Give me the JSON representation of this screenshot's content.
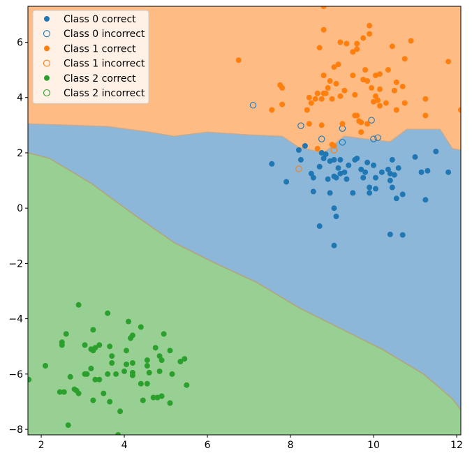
{
  "chart_data": {
    "type": "scatter",
    "title": "",
    "xlabel": "",
    "ylabel": "",
    "xlim": [
      1.68,
      12.1
    ],
    "ylim": [
      -8.2,
      7.3
    ],
    "x_ticks": [
      2,
      4,
      6,
      8,
      10,
      12
    ],
    "y_ticks": [
      -8,
      -6,
      -4,
      -2,
      0,
      2,
      4,
      6
    ],
    "grid": false,
    "legend_position": "top-left",
    "colors": {
      "class0": "#1f77b4",
      "class1": "#ff7f0e",
      "class2": "#2ca02c",
      "region0": "#8db7d8",
      "region1": "#ffbb84",
      "region2": "#98d094"
    },
    "decision_regions": {
      "boundary_1_0": [
        [
          1.68,
          3.05
        ],
        [
          3.6,
          2.95
        ],
        [
          4.6,
          2.75
        ],
        [
          5.2,
          2.6
        ],
        [
          6.0,
          2.75
        ],
        [
          7.0,
          2.65
        ],
        [
          7.8,
          2.6
        ],
        [
          8.2,
          2.2
        ],
        [
          8.8,
          2.0
        ],
        [
          9.3,
          2.6
        ],
        [
          9.8,
          2.5
        ],
        [
          10.4,
          2.4
        ],
        [
          10.8,
          2.85
        ],
        [
          11.6,
          2.85
        ],
        [
          11.9,
          2.15
        ],
        [
          12.1,
          2.1
        ]
      ],
      "boundary_0_2": [
        [
          1.68,
          2.0
        ],
        [
          2.2,
          1.8
        ],
        [
          3.2,
          0.9
        ],
        [
          4.2,
          -0.2
        ],
        [
          5.2,
          -1.25
        ],
        [
          6.2,
          -2.0
        ],
        [
          7.2,
          -2.7
        ],
        [
          8.2,
          -3.6
        ],
        [
          9.2,
          -4.35
        ],
        [
          10.2,
          -5.1
        ],
        [
          11.2,
          -6.0
        ],
        [
          11.9,
          -6.9
        ],
        [
          12.1,
          -7.3
        ]
      ]
    },
    "series": [
      {
        "name": "Class 0 correct",
        "marker": "filled",
        "points": [
          [
            7.55,
            1.6
          ],
          [
            7.9,
            0.95
          ],
          [
            8.2,
            2.1
          ],
          [
            8.25,
            1.75
          ],
          [
            8.35,
            2.25
          ],
          [
            8.5,
            1.25
          ],
          [
            8.55,
            1.1
          ],
          [
            8.55,
            0.6
          ],
          [
            8.7,
            1.5
          ],
          [
            8.75,
            2.0
          ],
          [
            8.7,
            -0.65
          ],
          [
            8.8,
            1.8
          ],
          [
            8.85,
            1.95
          ],
          [
            8.9,
            1.05
          ],
          [
            8.95,
            0.55
          ],
          [
            8.95,
            1.7
          ],
          [
            9.05,
            1.75
          ],
          [
            9.05,
            1.15
          ],
          [
            9.1,
            1.1
          ],
          [
            9.15,
            1.45
          ],
          [
            9.2,
            1.75
          ],
          [
            9.2,
            1.25
          ],
          [
            9.3,
            1.3
          ],
          [
            9.35,
            1.05
          ],
          [
            9.4,
            1.55
          ],
          [
            9.5,
            0.55
          ],
          [
            9.55,
            1.75
          ],
          [
            9.6,
            1.8
          ],
          [
            9.7,
            1.4
          ],
          [
            9.75,
            1.1
          ],
          [
            9.8,
            1.3
          ],
          [
            9.85,
            1.65
          ],
          [
            9.9,
            0.55
          ],
          [
            9.9,
            0.75
          ],
          [
            10.0,
            1.55
          ],
          [
            10.05,
            0.7
          ],
          [
            10.05,
            1.1
          ],
          [
            10.2,
            1.3
          ],
          [
            10.35,
            1.4
          ],
          [
            10.4,
            1.25
          ],
          [
            10.4,
            1.0
          ],
          [
            10.45,
            0.75
          ],
          [
            10.45,
            1.75
          ],
          [
            10.5,
            1.2
          ],
          [
            10.55,
            0.35
          ],
          [
            10.6,
            1.45
          ],
          [
            10.7,
            0.5
          ],
          [
            10.4,
            -0.95
          ],
          [
            10.7,
            -0.97
          ],
          [
            11.0,
            1.85
          ],
          [
            11.15,
            1.3
          ],
          [
            11.25,
            0.3
          ],
          [
            11.3,
            1.35
          ],
          [
            11.5,
            2.05
          ],
          [
            11.8,
            1.3
          ],
          [
            9.05,
            0.0
          ],
          [
            9.1,
            -0.3
          ],
          [
            9.05,
            -1.35
          ]
        ]
      },
      {
        "name": "Class 0 incorrect",
        "marker": "hollow",
        "points": [
          [
            7.1,
            3.72
          ],
          [
            8.25,
            2.98
          ],
          [
            8.75,
            2.5
          ],
          [
            9.25,
            2.88
          ],
          [
            9.25,
            2.38
          ],
          [
            9.95,
            3.18
          ],
          [
            10.0,
            2.5
          ],
          [
            10.1,
            2.55
          ]
        ]
      },
      {
        "name": "Class 1 correct",
        "marker": "filled",
        "points": [
          [
            6.75,
            5.35
          ],
          [
            7.55,
            3.55
          ],
          [
            7.75,
            4.45
          ],
          [
            7.8,
            4.35
          ],
          [
            7.8,
            3.75
          ],
          [
            8.45,
            4.0
          ],
          [
            8.4,
            3.55
          ],
          [
            8.45,
            3.05
          ],
          [
            8.5,
            3.8
          ],
          [
            8.6,
            3.95
          ],
          [
            8.65,
            4.15
          ],
          [
            8.7,
            5.8
          ],
          [
            8.75,
            3.95
          ],
          [
            8.8,
            4.15
          ],
          [
            8.8,
            4.8
          ],
          [
            8.8,
            6.45
          ],
          [
            8.85,
            4.15
          ],
          [
            8.8,
            7.3
          ],
          [
            8.9,
            4.35
          ],
          [
            8.95,
            4.6
          ],
          [
            9.0,
            3.95
          ],
          [
            9.05,
            5.1
          ],
          [
            9.1,
            4.5
          ],
          [
            9.15,
            5.2
          ],
          [
            9.2,
            6.0
          ],
          [
            9.2,
            4.05
          ],
          [
            9.25,
            3.05
          ],
          [
            9.3,
            4.25
          ],
          [
            9.35,
            5.95
          ],
          [
            9.5,
            5.65
          ],
          [
            9.5,
            4.8
          ],
          [
            9.55,
            4.1
          ],
          [
            9.55,
            3.35
          ],
          [
            9.6,
            5.95
          ],
          [
            9.6,
            5.75
          ],
          [
            9.6,
            3.35
          ],
          [
            9.65,
            3.15
          ],
          [
            9.7,
            2.75
          ],
          [
            9.75,
            6.15
          ],
          [
            9.75,
            4.65
          ],
          [
            9.8,
            5.0
          ],
          [
            9.85,
            4.6
          ],
          [
            9.85,
            3.05
          ],
          [
            9.9,
            6.3
          ],
          [
            9.9,
            6.6
          ],
          [
            9.95,
            4.35
          ],
          [
            10.0,
            3.85
          ],
          [
            10.05,
            4.8
          ],
          [
            10.05,
            4.05
          ],
          [
            10.1,
            3.9
          ],
          [
            10.15,
            4.85
          ],
          [
            10.15,
            4.3
          ],
          [
            10.15,
            3.7
          ],
          [
            10.3,
            3.8
          ],
          [
            10.35,
            5.0
          ],
          [
            10.45,
            5.85
          ],
          [
            10.5,
            4.25
          ],
          [
            10.55,
            4.55
          ],
          [
            10.55,
            3.55
          ],
          [
            10.7,
            4.4
          ],
          [
            10.75,
            5.4
          ],
          [
            10.75,
            3.8
          ],
          [
            10.9,
            6.05
          ],
          [
            11.25,
            3.95
          ],
          [
            11.25,
            3.35
          ],
          [
            11.8,
            5.3
          ],
          [
            12.1,
            3.55
          ],
          [
            8.75,
            3.0
          ],
          [
            9.7,
            3.1
          ],
          [
            8.65,
            2.15
          ],
          [
            9.0,
            2.3
          ],
          [
            9.05,
            2.25
          ]
        ]
      },
      {
        "name": "Class 1 incorrect",
        "marker": "hollow",
        "points": [
          [
            8.2,
            1.42
          ],
          [
            9.05,
            2.1
          ]
        ]
      },
      {
        "name": "Class 2 correct",
        "marker": "filled",
        "points": [
          [
            1.7,
            -6.2
          ],
          [
            2.1,
            -5.7
          ],
          [
            2.45,
            -6.65
          ],
          [
            2.5,
            -4.95
          ],
          [
            2.5,
            -4.85
          ],
          [
            2.55,
            -6.65
          ],
          [
            2.6,
            -4.55
          ],
          [
            2.65,
            -7.85
          ],
          [
            2.7,
            -6.1
          ],
          [
            2.8,
            -6.55
          ],
          [
            2.85,
            -6.6
          ],
          [
            2.9,
            -6.7
          ],
          [
            2.9,
            -3.5
          ],
          [
            3.05,
            -4.95
          ],
          [
            3.05,
            -6.0
          ],
          [
            3.1,
            -6.0
          ],
          [
            3.2,
            -5.1
          ],
          [
            3.2,
            -5.8
          ],
          [
            3.25,
            -5.15
          ],
          [
            3.25,
            -6.95
          ],
          [
            3.25,
            -4.4
          ],
          [
            3.3,
            -5.05
          ],
          [
            3.3,
            -6.2
          ],
          [
            3.4,
            -4.95
          ],
          [
            3.4,
            -6.2
          ],
          [
            3.5,
            -6.7
          ],
          [
            3.6,
            -6.0
          ],
          [
            3.6,
            -3.8
          ],
          [
            3.65,
            -5.0
          ],
          [
            3.65,
            -7.0
          ],
          [
            3.7,
            -5.6
          ],
          [
            3.7,
            -5.35
          ],
          [
            3.8,
            -6.0
          ],
          [
            3.85,
            -8.2
          ],
          [
            3.9,
            -7.35
          ],
          [
            4.0,
            -5.9
          ],
          [
            4.05,
            -5.15
          ],
          [
            4.05,
            -5.65
          ],
          [
            4.1,
            -4.1
          ],
          [
            4.15,
            -4.7
          ],
          [
            4.2,
            -4.6
          ],
          [
            4.2,
            -5.95
          ],
          [
            4.2,
            -6.05
          ],
          [
            4.2,
            -5.6
          ],
          [
            4.4,
            -6.35
          ],
          [
            4.4,
            -4.3
          ],
          [
            4.45,
            -6.95
          ],
          [
            4.55,
            -5.5
          ],
          [
            4.55,
            -5.7
          ],
          [
            4.55,
            -6.35
          ],
          [
            4.6,
            -5.95
          ],
          [
            4.7,
            -6.85
          ],
          [
            4.75,
            -5.05
          ],
          [
            4.8,
            -6.85
          ],
          [
            4.85,
            -5.35
          ],
          [
            4.85,
            -5.9
          ],
          [
            4.9,
            -5.5
          ],
          [
            4.9,
            -6.8
          ],
          [
            4.95,
            -4.55
          ],
          [
            5.1,
            -5.15
          ],
          [
            5.1,
            -7.05
          ],
          [
            5.15,
            -6.0
          ],
          [
            5.35,
            -5.55
          ],
          [
            5.45,
            -5.45
          ],
          [
            5.5,
            -6.4
          ]
        ]
      },
      {
        "name": "Class 2 incorrect",
        "marker": "hollow",
        "points": []
      }
    ]
  }
}
